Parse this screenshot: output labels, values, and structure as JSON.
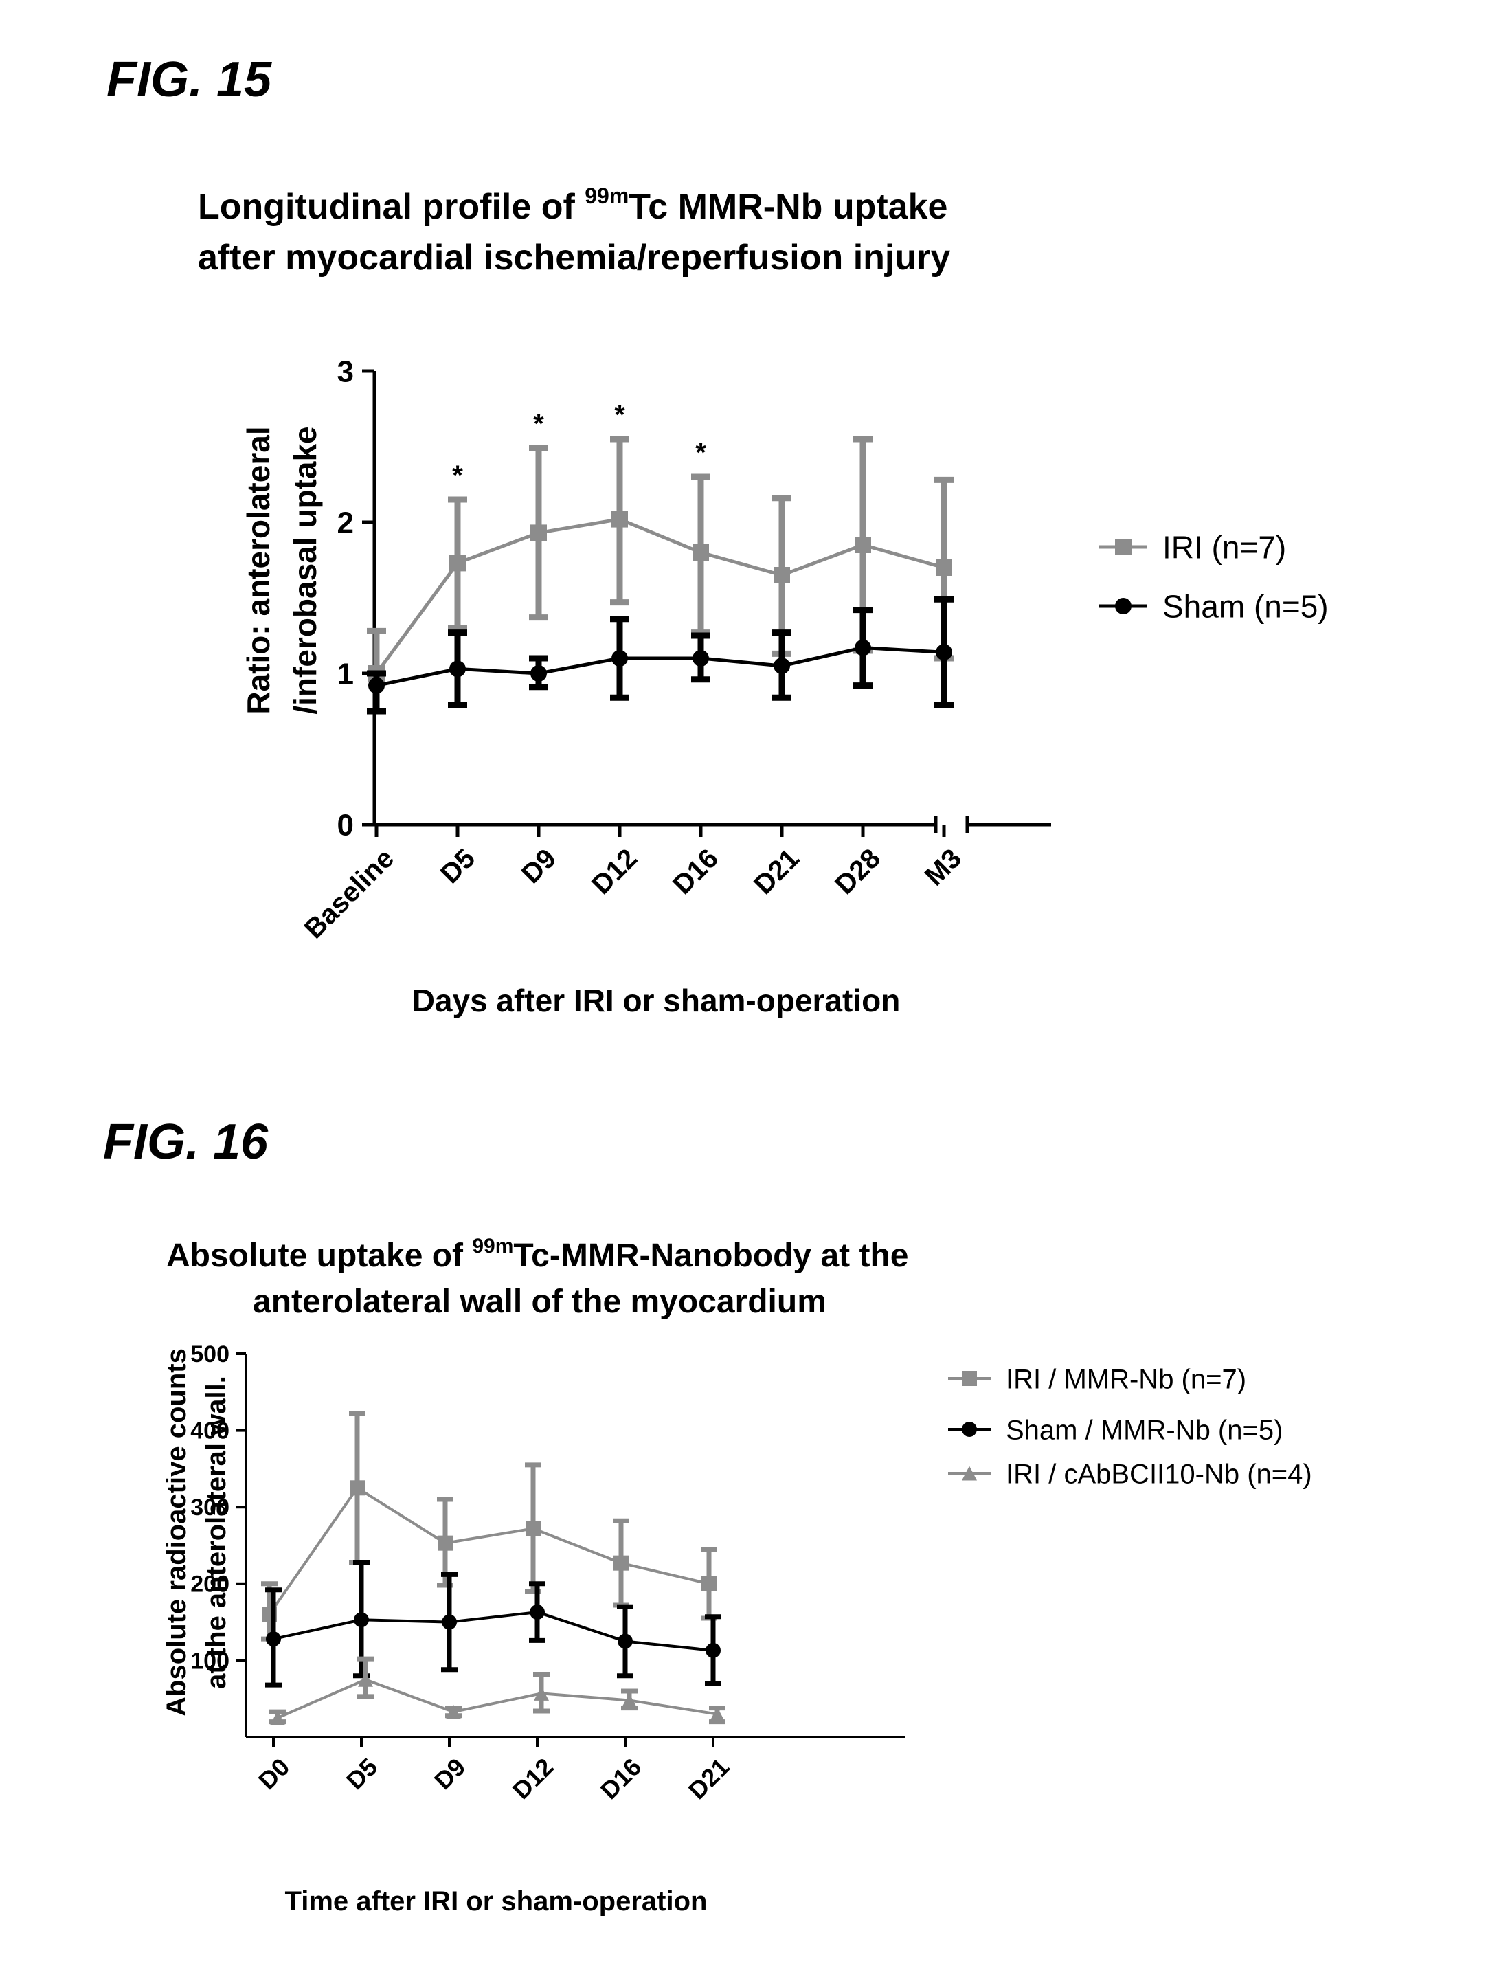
{
  "figures": {
    "fig15": {
      "label": "FIG. 15",
      "title_line1_pre": "Longitudinal profile of ",
      "title_line1_sup": "99m",
      "title_line1_post": "Tc MMR-Nb uptake",
      "title_line2": "after myocardial ischemia/reperfusion injury"
    },
    "fig16": {
      "label": "FIG. 16",
      "title_line1_pre": "Absolute uptake of ",
      "title_line1_sup": "99m",
      "title_line1_post": "Tc-MMR-Nanobody at the",
      "title_line2": "anterolateral wall of the myocardium"
    }
  },
  "colors": {
    "gray": "#8c8c8c",
    "black": "#000000"
  },
  "chart_data": [
    {
      "type": "line",
      "title": "Longitudinal profile of 99mTc MMR-Nb uptake after myocardial ischemia/reperfusion injury",
      "xlabel": "Days after IRI or sham-operation",
      "ylabel_line1": "Ratio: anterolateral",
      "ylabel_line2": "/inferobasal uptake",
      "ylim": [
        0,
        3
      ],
      "yticks": [
        "0",
        "1",
        "2",
        "3"
      ],
      "categories": [
        "Baseline",
        "D5",
        "D9",
        "D12",
        "D16",
        "D21",
        "D28",
        "M3"
      ],
      "axis_break_before": "M3",
      "significance_marker": "*",
      "significant_categories": [
        "D5",
        "D9",
        "D12",
        "D16"
      ],
      "series": [
        {
          "name": "IRI (n=7)",
          "marker": "square",
          "color": "#8c8c8c",
          "values": [
            1.0,
            1.73,
            1.93,
            2.02,
            1.8,
            1.65,
            1.85,
            1.7
          ],
          "upper": [
            1.28,
            2.15,
            2.49,
            2.55,
            2.3,
            2.16,
            2.55,
            2.28
          ],
          "lower": [
            0.75,
            1.3,
            1.37,
            1.47,
            1.27,
            1.13,
            1.15,
            1.1
          ]
        },
        {
          "name": "Sham (n=5)",
          "marker": "circle",
          "color": "#000000",
          "values": [
            0.92,
            1.03,
            1.0,
            1.1,
            1.1,
            1.05,
            1.17,
            1.14
          ],
          "upper": [
            1.0,
            1.27,
            1.1,
            1.36,
            1.25,
            1.27,
            1.42,
            1.49
          ],
          "lower": [
            0.75,
            0.79,
            0.91,
            0.84,
            0.96,
            0.84,
            0.92,
            0.79
          ]
        }
      ]
    },
    {
      "type": "line",
      "title": "Absolute uptake of 99mTc-MMR-Nanobody at the anterolateral wall of the myocardium",
      "xlabel": "Time after IRI or sham-operation",
      "ylabel_line1": "Absolute radioactive counts",
      "ylabel_line2": "at the anterolateral wall.",
      "ylim": [
        0,
        500
      ],
      "yticks": [
        "100",
        "200",
        "300",
        "400",
        "500"
      ],
      "categories": [
        "D0",
        "D5",
        "D9",
        "D12",
        "D16",
        "D21"
      ],
      "series": [
        {
          "name": "IRI / MMR-Nb (n=7)",
          "marker": "square",
          "color": "#8c8c8c",
          "values": [
            160,
            325,
            253,
            272,
            227,
            200
          ],
          "upper": [
            200,
            422,
            310,
            355,
            282,
            245
          ],
          "lower": [
            128,
            228,
            198,
            190,
            172,
            155
          ]
        },
        {
          "name": "Sham / MMR-Nb (n=5)",
          "marker": "circle",
          "color": "#000000",
          "values": [
            128,
            153,
            150,
            163,
            125,
            113
          ],
          "upper": [
            192,
            228,
            212,
            200,
            170,
            157
          ],
          "lower": [
            68,
            80,
            88,
            126,
            80,
            70
          ]
        },
        {
          "name": "IRI / cAbBCII10-Nb (n=4)",
          "marker": "triangle",
          "color": "#8c8c8c",
          "values": [
            25,
            75,
            33,
            57,
            48,
            30
          ],
          "upper": [
            33,
            102,
            38,
            82,
            60,
            38
          ],
          "lower": [
            20,
            53,
            28,
            34,
            38,
            20
          ]
        }
      ]
    }
  ]
}
